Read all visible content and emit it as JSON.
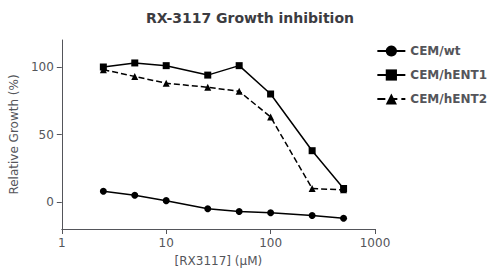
{
  "chart_data": {
    "type": "line",
    "title": "RX-3117 Growth inhibition",
    "xlabel": "[RX3117] (μM)",
    "ylabel": "Relative Growth (%)",
    "x": [
      2.5,
      5,
      10,
      25,
      50,
      100,
      250,
      500
    ],
    "series": [
      {
        "name": "CEM/wt",
        "color": "#000000",
        "marker": "circle",
        "line_style": "solid",
        "values": [
          8,
          5,
          1,
          -5,
          -7,
          -8,
          -10,
          -12
        ]
      },
      {
        "name": "CEM/hENT1",
        "color": "#000000",
        "marker": "square",
        "line_style": "solid",
        "values": [
          100,
          103,
          101,
          94,
          101,
          80,
          38,
          10
        ]
      },
      {
        "name": "CEM/hENT2",
        "color": "#000000",
        "marker": "triangle",
        "line_style": "dashed",
        "values": [
          98,
          93,
          88,
          85,
          82,
          63,
          10,
          9
        ]
      }
    ],
    "log": "x",
    "xlim": [
      1,
      1000
    ],
    "xticks": [
      1,
      10,
      100,
      1000
    ],
    "ylim": [
      -20,
      120
    ],
    "yticks": [
      0,
      50,
      100
    ],
    "grid": false,
    "legend": "right"
  }
}
